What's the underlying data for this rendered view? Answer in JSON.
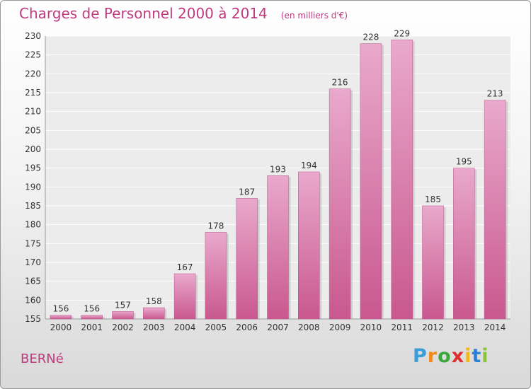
{
  "chart_data": {
    "type": "bar",
    "title": "Charges de Personnel 2000 à 2014",
    "subtitle": "(en milliers d'€)",
    "categories": [
      "2000",
      "2001",
      "2002",
      "2003",
      "2004",
      "2005",
      "2006",
      "2007",
      "2008",
      "2009",
      "2010",
      "2011",
      "2012",
      "2013",
      "2014"
    ],
    "values": [
      156,
      156,
      157,
      158,
      167,
      178,
      187,
      193,
      194,
      216,
      228,
      229,
      185,
      195,
      213
    ],
    "ylim": [
      155,
      230
    ],
    "yticks": [
      155,
      160,
      165,
      170,
      175,
      180,
      185,
      190,
      195,
      200,
      205,
      210,
      215,
      220,
      225,
      230
    ],
    "grid": true,
    "bar_color": "#c9588f",
    "bar_color_light": "#e9a9cc"
  },
  "commune": "BERNé",
  "logo": {
    "letters": [
      "P",
      "r",
      "o",
      "x",
      "i",
      "t",
      "i"
    ],
    "colors": [
      "#3a9fd8",
      "#f08a1c",
      "#3aa83a",
      "#e02e2e",
      "#f0b81c",
      "#2a7fd8",
      "#8ac43a"
    ]
  }
}
